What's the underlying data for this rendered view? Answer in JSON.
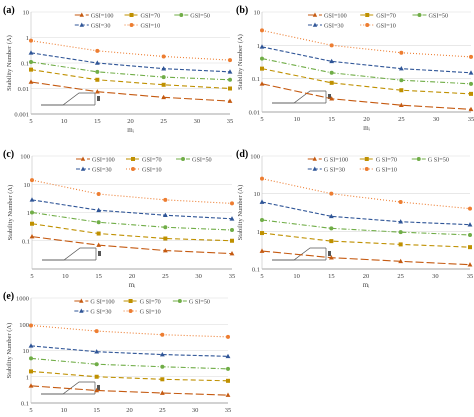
{
  "figure": {
    "series_styles": [
      {
        "color": "#c55a11",
        "marker": "triangle",
        "dash": "8,3"
      },
      {
        "color": "#bf9000",
        "marker": "square",
        "dash": "5,3"
      },
      {
        "color": "#70ad47",
        "marker": "circle",
        "dash": "5,2,1,2"
      },
      {
        "color": "#2f5597",
        "marker": "triangle",
        "dash": "4,2"
      },
      {
        "color": "#ed7d31",
        "marker": "circle",
        "dash": "1,2"
      }
    ]
  },
  "chart_data": [
    {
      "type": "line",
      "panel_label": "(a)",
      "xlabel": "mᵢ",
      "ylabel": "Stability Number (Λ)",
      "x": [
        5,
        15,
        25,
        35
      ],
      "x_ticks": [
        "5",
        "10",
        "15",
        "20",
        "25",
        "30",
        "35"
      ],
      "y_scale": "log",
      "ylim": [
        0.001,
        10
      ],
      "y_ticks": [
        "0.001",
        "0.01",
        "0.1",
        "1",
        "10"
      ],
      "legend_position": "top",
      "grid": "horizontal",
      "series": [
        {
          "name": "GSI=100",
          "values": [
            0.018,
            0.0075,
            0.0045,
            0.0032
          ]
        },
        {
          "name": "GSI=70",
          "values": [
            0.055,
            0.022,
            0.014,
            0.01
          ]
        },
        {
          "name": "GSI=50",
          "values": [
            0.11,
            0.045,
            0.028,
            0.022
          ]
        },
        {
          "name": "GSI=30",
          "values": [
            0.25,
            0.1,
            0.06,
            0.045
          ]
        },
        {
          "name": "GSI=10",
          "values": [
            0.75,
            0.3,
            0.18,
            0.13
          ]
        }
      ]
    },
    {
      "type": "line",
      "panel_label": "(b)",
      "xlabel": "mᵢ",
      "ylabel": "Stability Number (Λ)",
      "x": [
        5,
        15,
        25,
        35
      ],
      "x_ticks": [
        "5",
        "10",
        "15",
        "20",
        "25",
        "30",
        "35"
      ],
      "y_scale": "log",
      "ylim": [
        0.01,
        10
      ],
      "y_ticks": [
        "0.01",
        "0.1",
        "1",
        "10"
      ],
      "legend_position": "top",
      "grid": "horizontal",
      "series": [
        {
          "name": "GSI=100",
          "values": [
            0.07,
            0.025,
            0.016,
            0.012
          ]
        },
        {
          "name": "GSI=70",
          "values": [
            0.2,
            0.075,
            0.045,
            0.035
          ]
        },
        {
          "name": "GSI=50",
          "values": [
            0.4,
            0.15,
            0.09,
            0.07
          ]
        },
        {
          "name": "GSI=30",
          "values": [
            0.9,
            0.33,
            0.2,
            0.15
          ]
        },
        {
          "name": "GSI=10",
          "values": [
            2.8,
            1.0,
            0.6,
            0.45
          ]
        }
      ]
    },
    {
      "type": "line",
      "panel_label": "(c)",
      "xlabel": "mᵢ",
      "ylabel": "Stability Number (Λ)",
      "x": [
        5,
        15,
        25,
        35
      ],
      "x_ticks": [
        "5",
        "10",
        "15",
        "20",
        "25",
        "30",
        "35"
      ],
      "y_scale": "log",
      "ylim": [
        0.01,
        100
      ],
      "y_ticks": [
        "0.1",
        "1",
        "10",
        "100"
      ],
      "legend_position": "top",
      "grid": "horizontal",
      "series": [
        {
          "name": "GSI=100",
          "values": [
            0.14,
            0.07,
            0.045,
            0.035
          ]
        },
        {
          "name": "GSI=70",
          "values": [
            0.4,
            0.18,
            0.12,
            0.1
          ]
        },
        {
          "name": "GSI=50",
          "values": [
            1.0,
            0.45,
            0.3,
            0.24
          ]
        },
        {
          "name": "GSI=30",
          "values": [
            2.8,
            1.2,
            0.8,
            0.6
          ]
        },
        {
          "name": "GSI=10",
          "values": [
            14,
            4.5,
            2.8,
            2.1
          ]
        }
      ]
    },
    {
      "type": "line",
      "panel_label": "(d)",
      "xlabel": "mᵢ",
      "ylabel": "Stability Number (Λ)",
      "x": [
        5,
        15,
        25,
        35
      ],
      "x_ticks": [
        "5",
        "10",
        "15",
        "20",
        "25",
        "30",
        "35"
      ],
      "y_scale": "log",
      "ylim": [
        0.1,
        100
      ],
      "y_ticks": [
        "0.1",
        "1",
        "10",
        "100"
      ],
      "legend_position": "top",
      "grid": "horizontal",
      "series": [
        {
          "name": "G SI=100",
          "values": [
            0.3,
            0.2,
            0.16,
            0.13
          ]
        },
        {
          "name": "G SI=70",
          "values": [
            0.9,
            0.55,
            0.45,
            0.38
          ]
        },
        {
          "name": "G SI=50",
          "values": [
            2.0,
            1.2,
            0.95,
            0.8
          ]
        },
        {
          "name": "G SI=30",
          "values": [
            6.0,
            2.5,
            1.8,
            1.5
          ]
        },
        {
          "name": "G SI=10",
          "values": [
            25,
            10,
            6,
            4
          ]
        }
      ]
    },
    {
      "type": "line",
      "panel_label": "(e)",
      "xlabel": "mᵢ",
      "ylabel": "Stability Number (Λ)",
      "x": [
        5,
        15,
        25,
        35
      ],
      "x_ticks": [
        "5",
        "10",
        "15",
        "20",
        "25",
        "30",
        "35"
      ],
      "y_scale": "log",
      "ylim": [
        0.1,
        1000
      ],
      "y_ticks": [
        "0.1",
        "1",
        "10",
        "100",
        "1000"
      ],
      "legend_position": "top",
      "grid": "horizontal",
      "series": [
        {
          "name": "G SI=100",
          "values": [
            0.45,
            0.3,
            0.24,
            0.2
          ]
        },
        {
          "name": "G SI=70",
          "values": [
            1.6,
            1.0,
            0.8,
            0.7
          ]
        },
        {
          "name": "G SI=50",
          "values": [
            5,
            3,
            2.4,
            2.0
          ]
        },
        {
          "name": "G SI=30",
          "values": [
            15,
            9,
            7,
            6
          ]
        },
        {
          "name": "G SI=10",
          "values": [
            90,
            55,
            40,
            33
          ]
        }
      ]
    }
  ]
}
